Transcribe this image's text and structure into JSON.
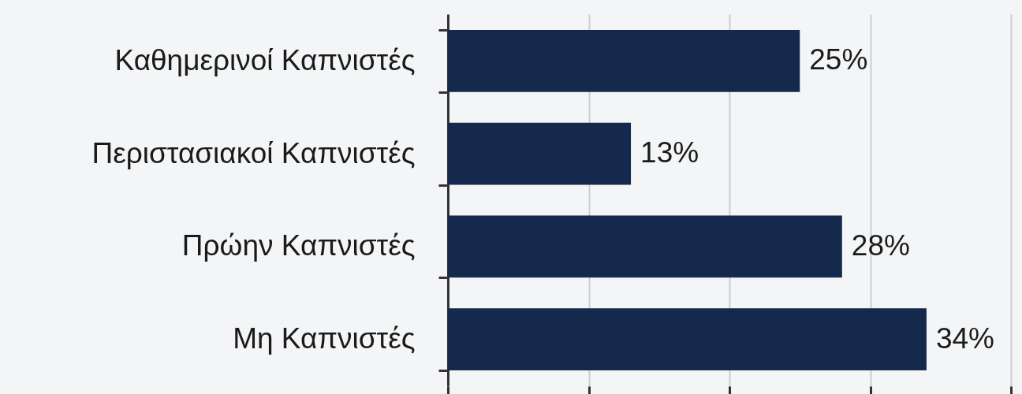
{
  "chart_data": {
    "type": "bar",
    "orientation": "horizontal",
    "categories": [
      "Καθημερινοί Καπνιστές",
      "Περιστασιακοί Καπνιστές",
      "Πρώην Καπνιστές",
      "Μη Καπνιστές"
    ],
    "values": [
      25,
      13,
      28,
      34
    ],
    "value_labels": [
      "25%",
      "13%",
      "28%",
      "34%"
    ],
    "color": "#14294b",
    "xlim": [
      0,
      40
    ],
    "xticks": [
      {
        "value": 0,
        "label": null
      },
      {
        "value": 10,
        "label": null
      },
      {
        "value": 20,
        "label": null
      },
      {
        "value": 30,
        "label": null
      },
      {
        "value": 40,
        "label": null
      }
    ],
    "grid": "x",
    "tick_labels": "y"
  }
}
